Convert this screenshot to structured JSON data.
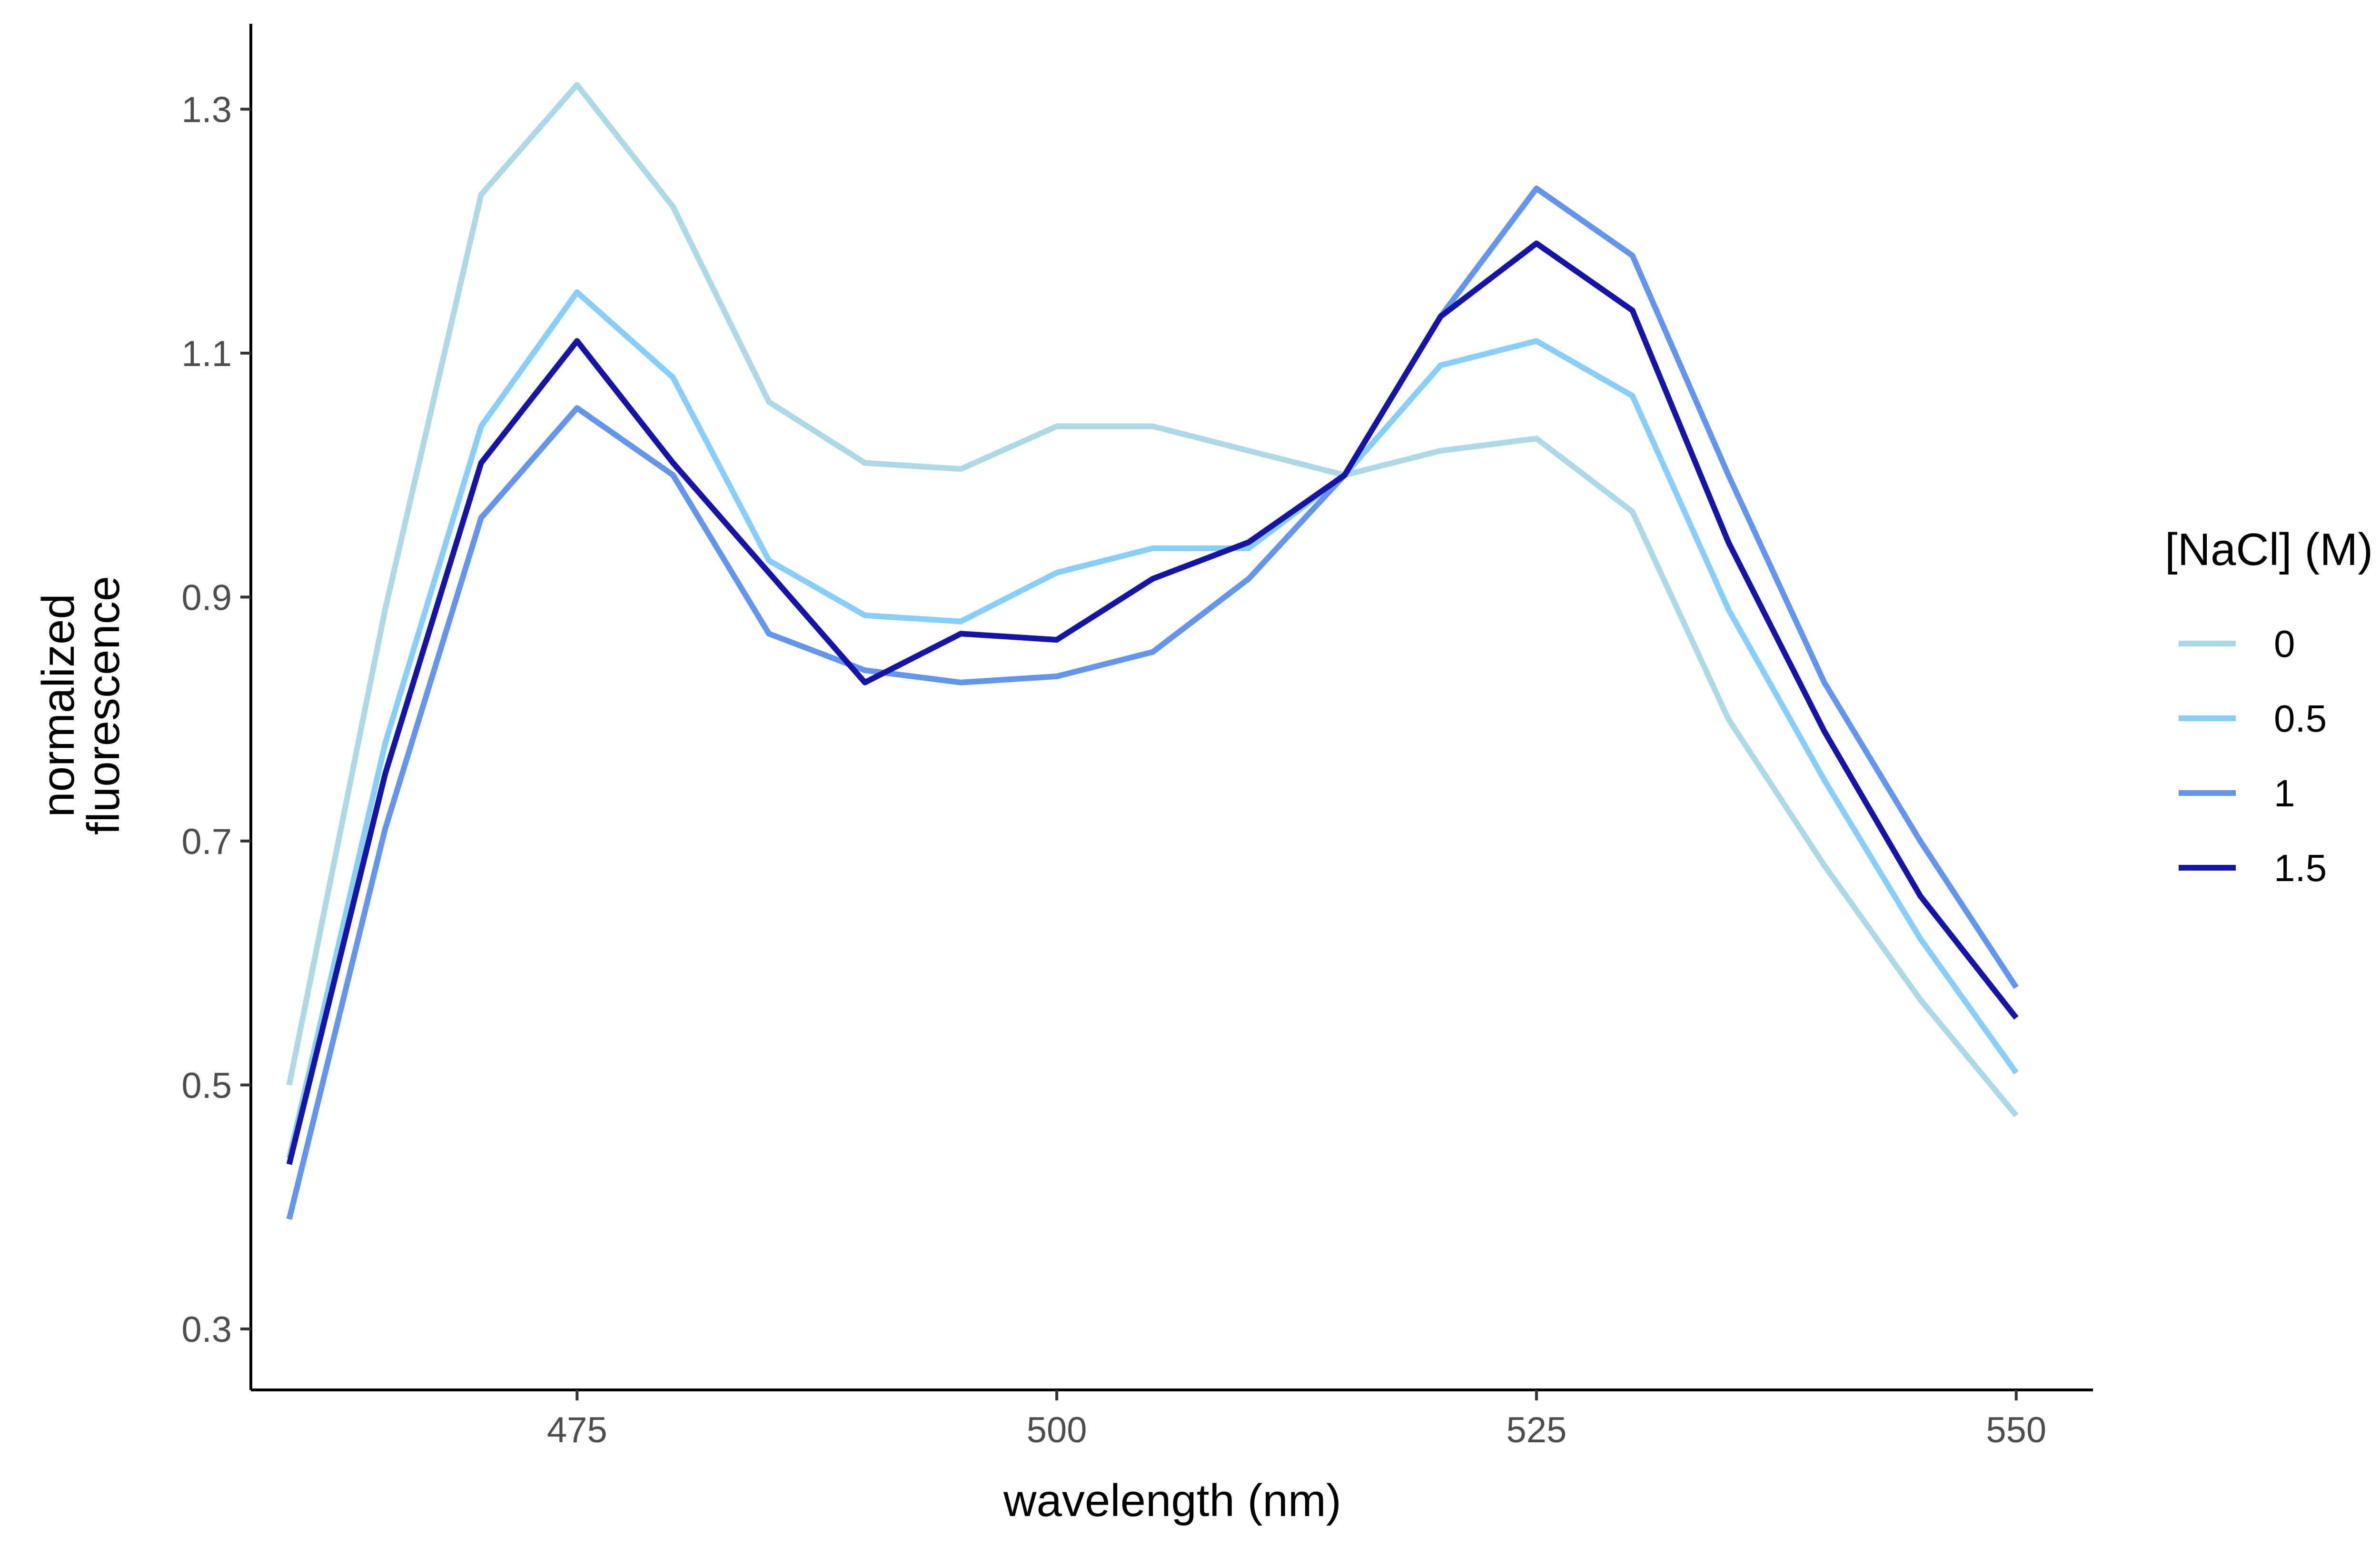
{
  "chart_data": {
    "type": "line",
    "xlabel": "wavelength (nm)",
    "ylabel_lines": [
      "normalized",
      "fluorescence"
    ],
    "xlim": [
      458,
      554
    ],
    "ylim": [
      0.25,
      1.37
    ],
    "x_ticks": [
      475,
      500,
      525,
      550
    ],
    "y_ticks": [
      0.3,
      0.5,
      0.7,
      0.9,
      1.1,
      1.3
    ],
    "grid": false,
    "legend": {
      "title": "[NaCl] (M)",
      "position": "right"
    },
    "x": [
      460,
      465,
      470,
      475,
      480,
      485,
      490,
      495,
      500,
      505,
      510,
      515,
      520,
      525,
      530,
      535,
      540,
      545,
      550
    ],
    "series": [
      {
        "name": "0",
        "color": "#add8e6",
        "values": [
          0.5,
          0.89,
          1.23,
          1.32,
          1.22,
          1.06,
          1.01,
          1.005,
          1.04,
          1.04,
          1.02,
          1.0,
          1.02,
          1.03,
          0.97,
          0.8,
          0.68,
          0.57,
          0.475
        ]
      },
      {
        "name": "0.5",
        "color": "#87cefa",
        "values": [
          0.44,
          0.78,
          1.04,
          1.15,
          1.08,
          0.93,
          0.885,
          0.88,
          0.92,
          0.94,
          0.94,
          1.0,
          1.09,
          1.11,
          1.065,
          0.89,
          0.75,
          0.62,
          0.51
        ]
      },
      {
        "name": "1",
        "color": "#6495ed",
        "values": [
          0.39,
          0.71,
          0.965,
          1.055,
          1.0,
          0.87,
          0.84,
          0.83,
          0.835,
          0.855,
          0.915,
          1.0,
          1.13,
          1.235,
          1.18,
          1.0,
          0.83,
          0.7,
          0.58
        ]
      },
      {
        "name": "1.5",
        "color": "#1414a6",
        "values": [
          0.435,
          0.755,
          1.01,
          1.11,
          1.01,
          0.92,
          0.83,
          0.87,
          0.865,
          0.915,
          0.945,
          1.0,
          1.13,
          1.19,
          1.135,
          0.945,
          0.79,
          0.655,
          0.555
        ]
      }
    ]
  }
}
